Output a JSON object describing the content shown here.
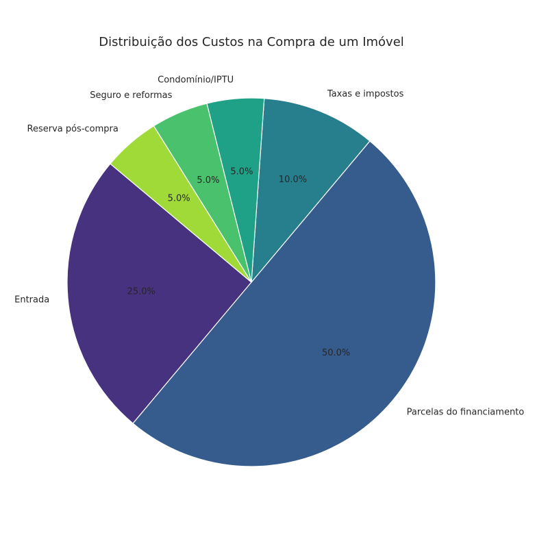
{
  "chart_data": {
    "type": "pie",
    "title": "Distribuição dos Custos na Compra de um Imóvel",
    "start_angle_deg": 140,
    "direction": "counterclockwise",
    "slices": [
      {
        "label": "Entrada",
        "value": 25.0,
        "pct_label": "25.0%",
        "color": "#46327e"
      },
      {
        "label": "Parcelas do financiamento",
        "value": 50.0,
        "pct_label": "50.0%",
        "color": "#365c8d"
      },
      {
        "label": "Taxas e impostos",
        "value": 10.0,
        "pct_label": "10.0%",
        "color": "#277f8e"
      },
      {
        "label": "Condomínio/IPTU",
        "value": 5.0,
        "pct_label": "5.0%",
        "color": "#1fa187"
      },
      {
        "label": "Seguro e reformas",
        "value": 5.0,
        "pct_label": "5.0%",
        "color": "#4ac16d"
      },
      {
        "label": "Reserva pós-compra",
        "value": 5.0,
        "pct_label": "5.0%",
        "color": "#a0da39"
      }
    ]
  }
}
